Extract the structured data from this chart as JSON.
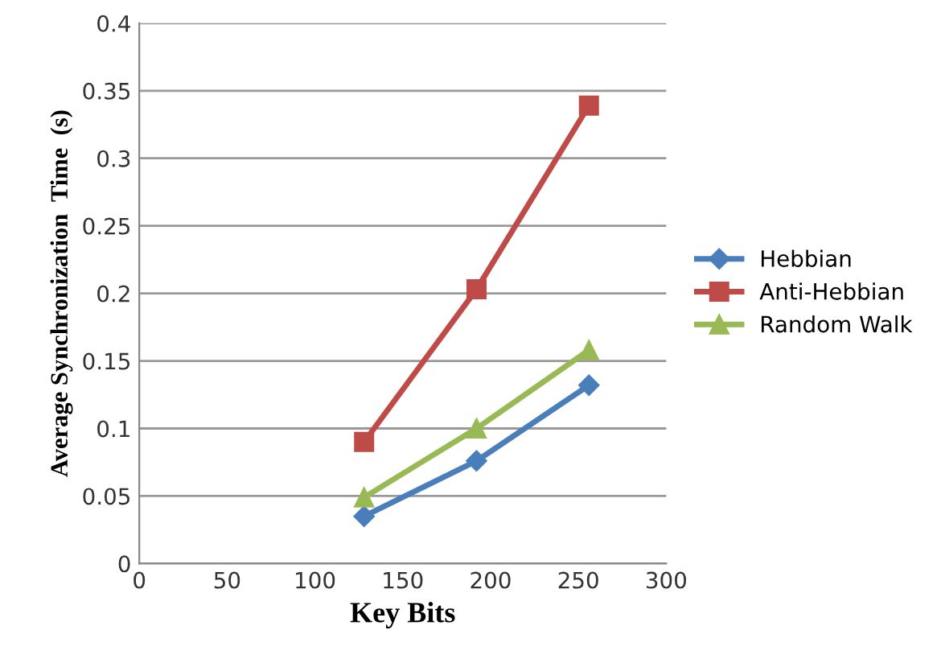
{
  "chart_data": {
    "type": "line",
    "xlabel": "Key Bits",
    "ylabel": "Average Synchronization  Time  (s)",
    "x": [
      128,
      192,
      256
    ],
    "series": [
      {
        "name": "Hebbian",
        "color": "#4a7ebb",
        "values": [
          0.035,
          0.076,
          0.132
        ],
        "marker": "diamond"
      },
      {
        "name": "Anti-Hebbian",
        "color": "#be4b48",
        "values": [
          0.09,
          0.203,
          0.339
        ],
        "marker": "square"
      },
      {
        "name": "Random Walk",
        "color": "#98b954",
        "values": [
          0.049,
          0.1,
          0.158
        ],
        "marker": "triangle"
      }
    ],
    "xlim": [
      0,
      300
    ],
    "xticks": [
      0,
      50,
      100,
      150,
      200,
      250,
      300
    ],
    "ylim": [
      0,
      0.4
    ],
    "yticks": [
      0,
      0.05,
      0.1,
      0.15,
      0.2,
      0.25,
      0.3,
      0.35,
      0.4
    ],
    "grid": "y",
    "legend": "right",
    "line_style": "solid"
  }
}
